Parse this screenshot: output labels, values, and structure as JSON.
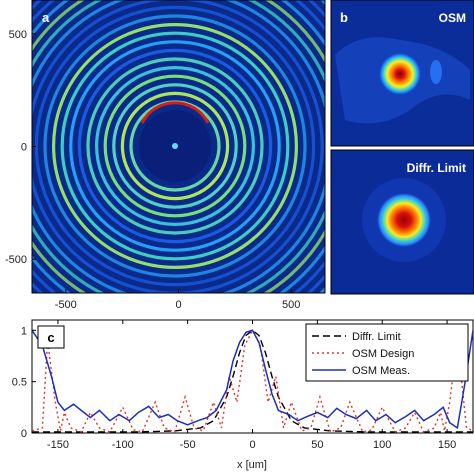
{
  "chart_data": [
    {
      "panel": "a",
      "type": "heatmap",
      "description_visible": "concentric rings",
      "x_ticks": [
        "-500",
        "0",
        "500"
      ],
      "y_ticks": [
        "500",
        "0",
        "-500"
      ],
      "xlim": [
        -650,
        650
      ],
      "ylim": [
        -650,
        650
      ],
      "colormap": "jet"
    },
    {
      "panel": "b",
      "type": "heatmap",
      "title": "OSM",
      "colormap": "jet"
    },
    {
      "panel": "b2",
      "type": "heatmap",
      "title": "Diffr. Limit",
      "colormap": "jet"
    },
    {
      "panel": "c",
      "type": "line",
      "xlabel": "x [um]",
      "x_ticks": [
        "-150",
        "-100",
        "-50",
        "0",
        "50",
        "100",
        "150"
      ],
      "y_ticks": [
        "0",
        "0.5",
        "1"
      ],
      "xlim": [
        -170,
        170
      ],
      "ylim": [
        0,
        1.1
      ],
      "legend": "top-right",
      "series": [
        {
          "name": "Diffr. Limit",
          "color": "#000000",
          "style": "dashed",
          "x": [
            -170,
            -150,
            -120,
            -90,
            -60,
            -40,
            -30,
            -20,
            -15,
            -10,
            -5,
            0,
            5,
            10,
            15,
            20,
            30,
            40,
            60,
            90,
            120,
            150,
            170
          ],
          "y": [
            0.01,
            0.01,
            0.01,
            0.01,
            0.02,
            0.05,
            0.12,
            0.35,
            0.55,
            0.78,
            0.95,
            1.0,
            0.95,
            0.78,
            0.55,
            0.35,
            0.12,
            0.05,
            0.02,
            0.01,
            0.01,
            0.01,
            0.01
          ]
        },
        {
          "name": "OSM Design",
          "color": "#e8312a",
          "style": "dotted",
          "x": [
            -170,
            -162,
            -158,
            -152,
            -148,
            -145,
            -140,
            -132,
            -125,
            -118,
            -110,
            -100,
            -92,
            -85,
            -75,
            -68,
            -60,
            -52,
            -45,
            -38,
            -30,
            -24,
            -18,
            -12,
            -6,
            0,
            6,
            12,
            18,
            24,
            30,
            38,
            45,
            52,
            60,
            68,
            75,
            85,
            92,
            100,
            110,
            118,
            125,
            132,
            140,
            145,
            148,
            152,
            158,
            165,
            170
          ],
          "y": [
            0.02,
            0.05,
            0.9,
            0.3,
            0.02,
            0.2,
            0.05,
            0.01,
            0.2,
            0.05,
            0.01,
            0.25,
            0.03,
            0.01,
            0.3,
            0.05,
            0.01,
            0.35,
            0.05,
            0.02,
            0.3,
            0.05,
            0.55,
            0.3,
            0.85,
            1.0,
            0.85,
            0.3,
            0.55,
            0.05,
            0.3,
            0.02,
            0.05,
            0.35,
            0.01,
            0.05,
            0.3,
            0.01,
            0.03,
            0.25,
            0.01,
            0.05,
            0.2,
            0.01,
            0.05,
            0.2,
            0.02,
            0.3,
            0.9,
            0.05,
            0.02
          ]
        },
        {
          "name": "OSM Meas.",
          "color": "#1a2fbf",
          "style": "solid",
          "x": [
            -170,
            -162,
            -155,
            -150,
            -145,
            -138,
            -130,
            -125,
            -118,
            -110,
            -103,
            -95,
            -88,
            -80,
            -72,
            -65,
            -58,
            -50,
            -42,
            -35,
            -28,
            -20,
            -15,
            -10,
            -5,
            0,
            5,
            10,
            15,
            20,
            28,
            35,
            42,
            50,
            58,
            65,
            72,
            80,
            88,
            95,
            103,
            110,
            118,
            125,
            132,
            140,
            147,
            152,
            158,
            164,
            170
          ],
          "y": [
            1.0,
            0.85,
            0.55,
            0.3,
            0.22,
            0.28,
            0.2,
            0.15,
            0.22,
            0.12,
            0.18,
            0.12,
            0.2,
            0.26,
            0.15,
            0.18,
            0.12,
            0.08,
            0.12,
            0.15,
            0.22,
            0.42,
            0.7,
            0.88,
            0.98,
            1.0,
            0.88,
            0.62,
            0.38,
            0.22,
            0.18,
            0.12,
            0.16,
            0.2,
            0.15,
            0.24,
            0.18,
            0.14,
            0.22,
            0.12,
            0.18,
            0.1,
            0.16,
            0.22,
            0.12,
            0.18,
            0.25,
            0.1,
            0.05,
            0.5,
            1.0
          ]
        }
      ]
    }
  ],
  "labels": {
    "a": "a",
    "b": "b",
    "c": "c"
  }
}
